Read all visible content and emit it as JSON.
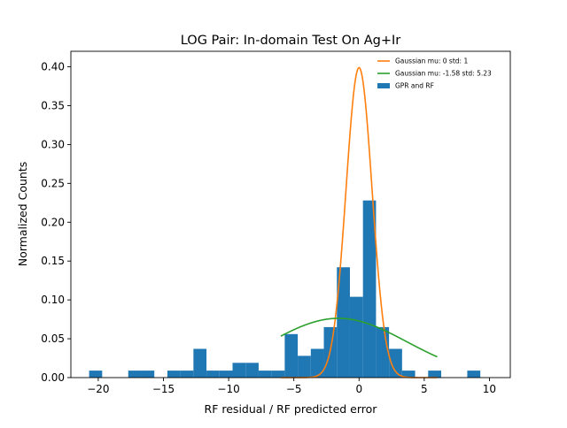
{
  "chart_data": {
    "type": "bar",
    "title": "LOG Pair: In-domain Test On Ag+Ir",
    "xlabel": "RF residual / RF predicted error",
    "ylabel": "Normalized Counts",
    "xlim": [
      -22.1,
      11.6
    ],
    "ylim": [
      0,
      0.42
    ],
    "xticks": [
      -20,
      -15,
      -10,
      -5,
      0,
      5,
      10
    ],
    "xtick_labels": [
      "−20",
      "−15",
      "−10",
      "−5",
      "0",
      "5",
      "10"
    ],
    "yticks": [
      0.0,
      0.05,
      0.1,
      0.15,
      0.2,
      0.25,
      0.3,
      0.35,
      0.4
    ],
    "ytick_labels": [
      "0.00",
      "0.05",
      "0.10",
      "0.15",
      "0.20",
      "0.25",
      "0.30",
      "0.35",
      "0.40"
    ],
    "grid": false,
    "legend_position": "upper right",
    "histogram": {
      "name": "GPR and RF",
      "color": "#1f77b4",
      "bin_edges_start": -20.7,
      "bin_width": 1.0,
      "values": [
        0.009,
        0,
        0,
        0.009,
        0.009,
        0,
        0.009,
        0.009,
        0.037,
        0.009,
        0.009,
        0.019,
        0.019,
        0.009,
        0.009,
        0.056,
        0.028,
        0.037,
        0.065,
        0.142,
        0.104,
        0.228,
        0.065,
        0.037,
        0.009,
        0,
        0.009,
        0,
        0,
        0.009
      ]
    },
    "series": [
      {
        "name": "Gaussian mu: 0 std: 1",
        "color": "#ff7f0e",
        "mu": 0,
        "std": 1,
        "x_range": [
          -6,
          6
        ]
      },
      {
        "name": "Gaussian mu: -1.58 std: 5.23",
        "color": "#2ca02c",
        "mu": -1.58,
        "std": 5.23,
        "x_range": [
          -6,
          6
        ]
      }
    ],
    "legend": [
      {
        "label": "Gaussian mu: 0 std: 1",
        "kind": "line",
        "color": "#ff7f0e"
      },
      {
        "label": "Gaussian mu: -1.58 std: 5.23",
        "kind": "line",
        "color": "#2ca02c"
      },
      {
        "label": "GPR and RF",
        "kind": "patch",
        "color": "#1f77b4"
      }
    ]
  }
}
